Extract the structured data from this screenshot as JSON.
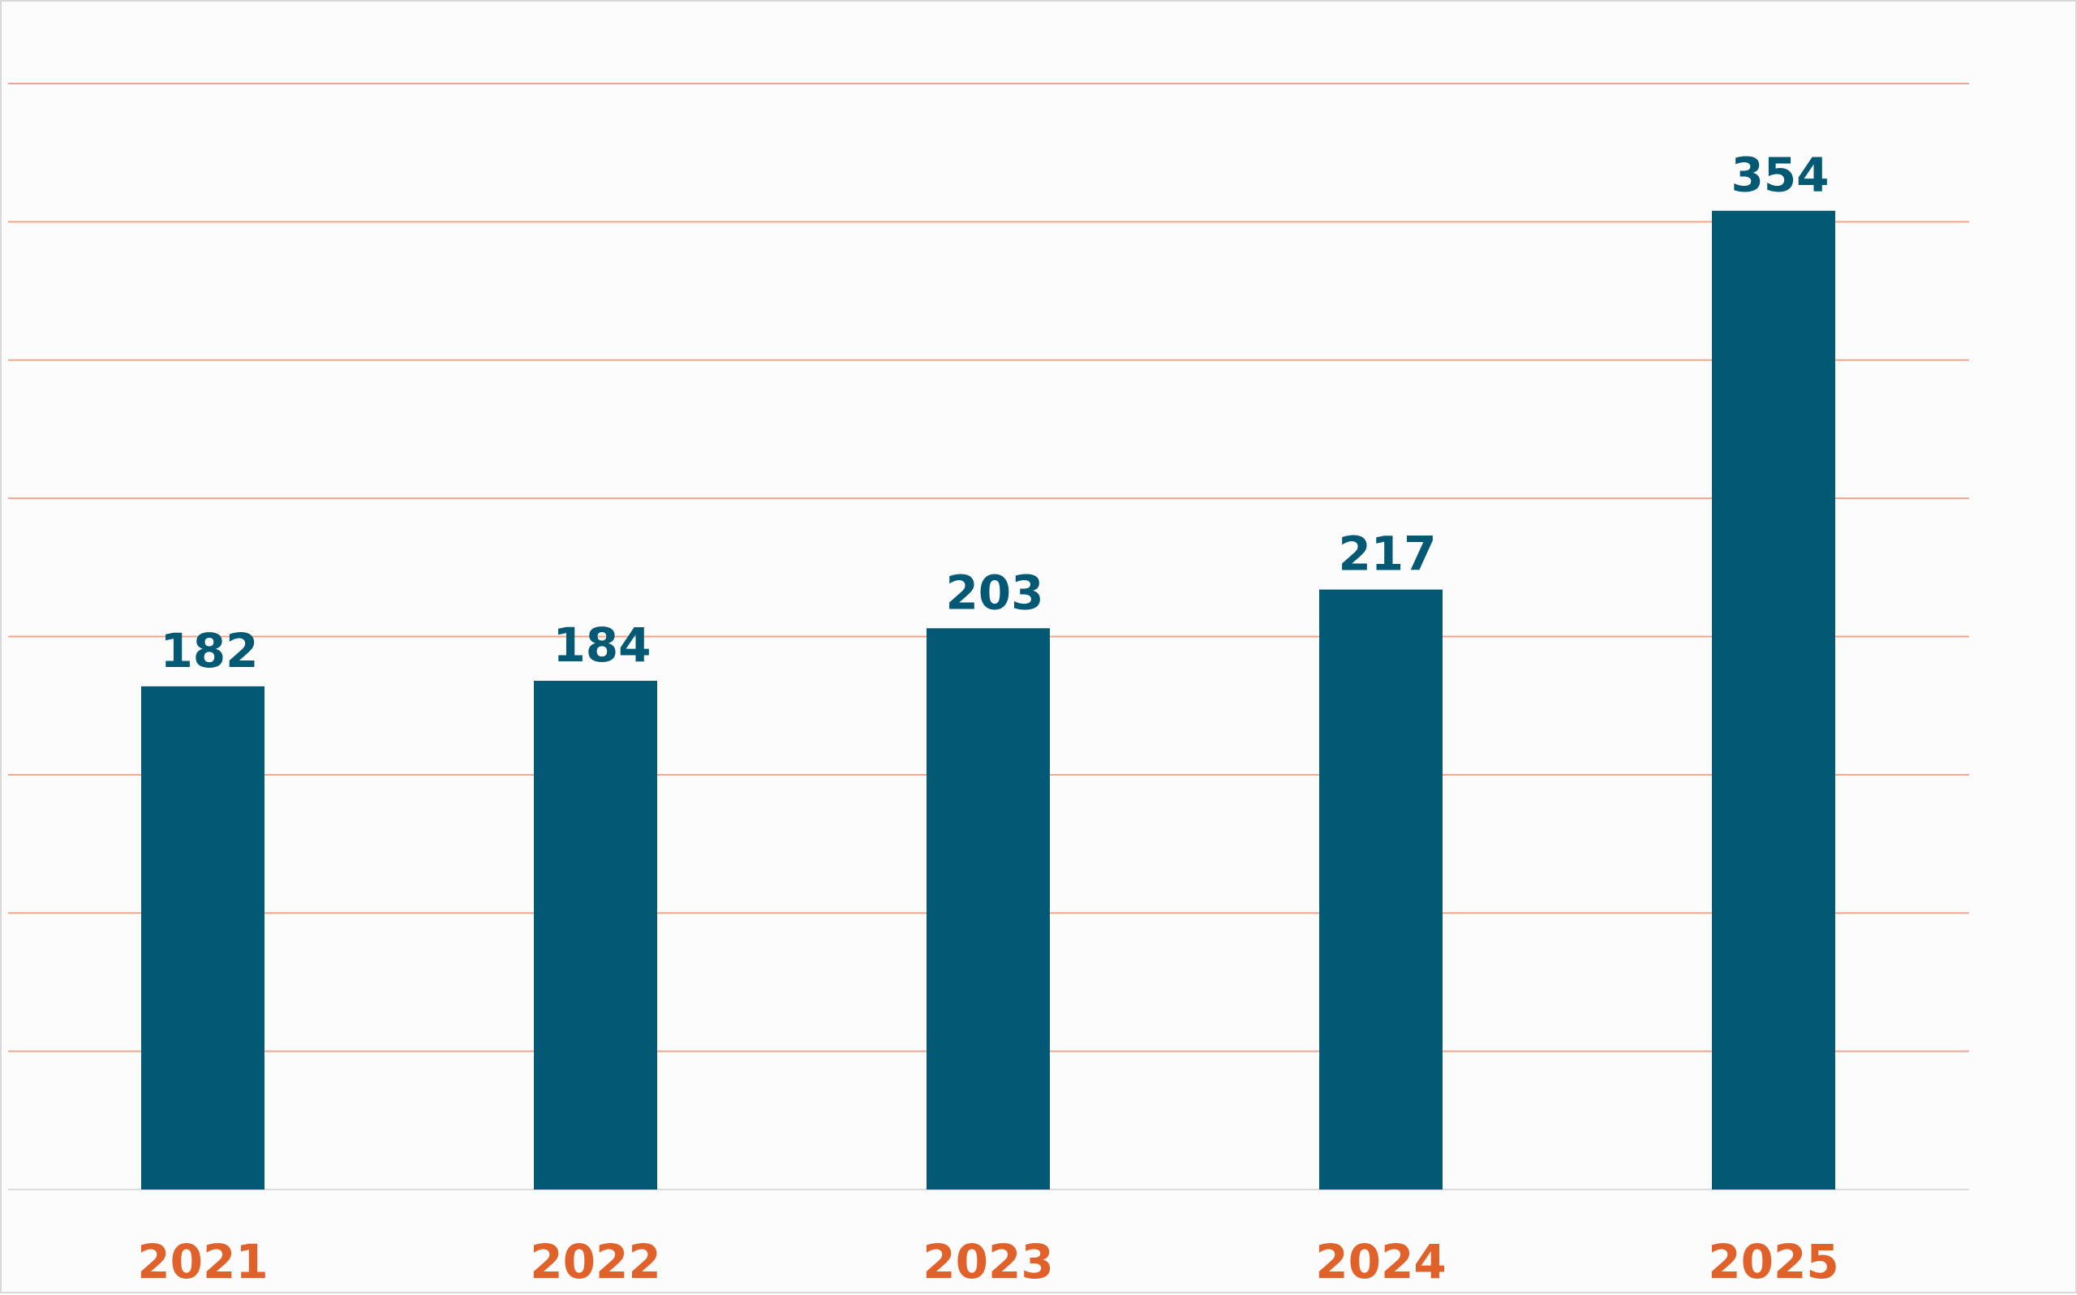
{
  "chart_data": {
    "type": "bar",
    "categories": [
      "2021",
      "2022",
      "2023",
      "2024",
      "2025"
    ],
    "values": [
      182,
      184,
      203,
      217,
      354
    ],
    "title": "",
    "xlabel": "",
    "ylabel": "",
    "ylim": [
      0,
      400
    ],
    "grid": true,
    "gridline_count": 8,
    "legend": "none",
    "data_labels": true
  },
  "colors": {
    "bar": "#035873",
    "value_label": "#035873",
    "category_label": "#e0622a",
    "grid": "#f0a58c",
    "baseline": "#dcdcdc",
    "background": "#fcfcfc"
  }
}
